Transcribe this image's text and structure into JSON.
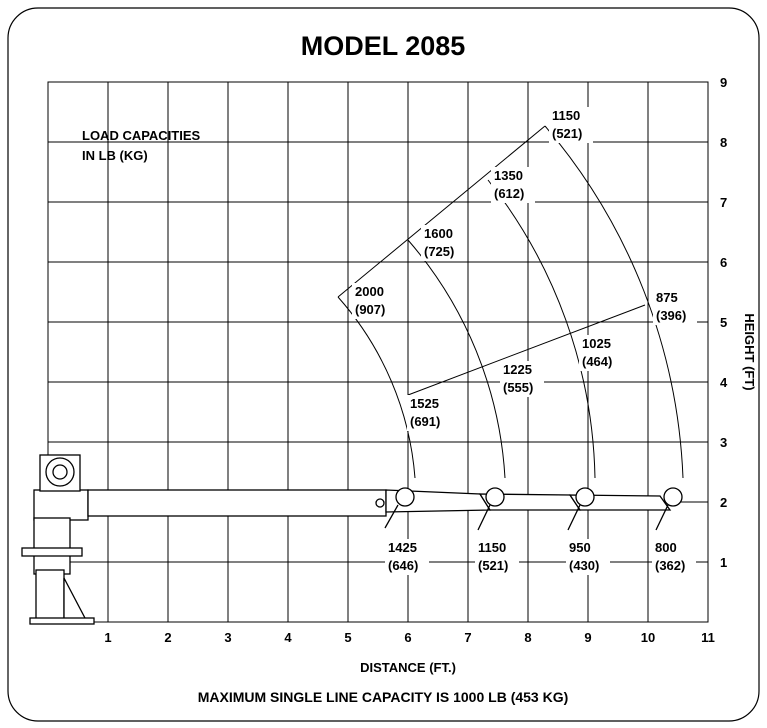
{
  "header": {
    "title": "MODEL 2085"
  },
  "legend": {
    "line1": "LOAD CAPACITIES",
    "line2": "IN LB (KG)"
  },
  "axes": {
    "x_label": "DISTANCE (FT.)",
    "y_label": "HEIGHT (FT)",
    "x_ticks": [
      "1",
      "2",
      "3",
      "4",
      "5",
      "6",
      "7",
      "8",
      "9",
      "10",
      "11"
    ],
    "y_ticks": [
      "1",
      "2",
      "3",
      "4",
      "5",
      "6",
      "7",
      "8",
      "9"
    ]
  },
  "capacities": [
    {
      "lb": "2000",
      "kg": "(907)"
    },
    {
      "lb": "1600",
      "kg": "(725)"
    },
    {
      "lb": "1350",
      "kg": "(612)"
    },
    {
      "lb": "1150",
      "kg": "(521)"
    },
    {
      "lb": "1525",
      "kg": "(691)"
    },
    {
      "lb": "1225",
      "kg": "(555)"
    },
    {
      "lb": "1025",
      "kg": "(464)"
    },
    {
      "lb": "875",
      "kg": "(396)"
    },
    {
      "lb": "1425",
      "kg": "(646)"
    },
    {
      "lb": "1150",
      "kg": "(521)"
    },
    {
      "lb": "950",
      "kg": "(430)"
    },
    {
      "lb": "800",
      "kg": "(362)"
    }
  ],
  "footer": {
    "note": "MAXIMUM SINGLE LINE CAPACITY IS 1000 LB (453 KG)"
  }
}
